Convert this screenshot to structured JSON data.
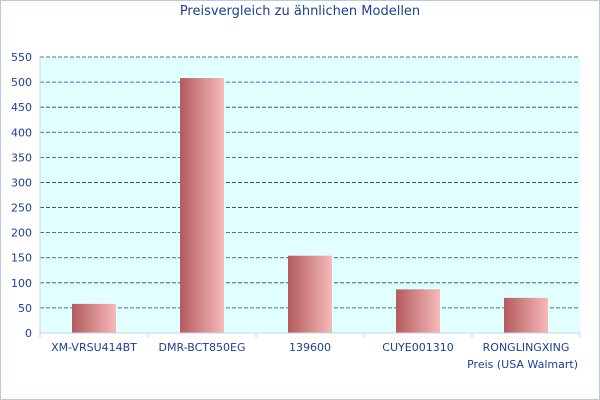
{
  "chart_data": {
    "type": "bar",
    "title": "Preisvergleich zu ähnlichen Modellen",
    "categories": [
      "XM-VRSU414BT",
      "DMR-BCT850EG",
      "139600",
      "CUYE001310",
      "RONGLINGXING"
    ],
    "series": [
      {
        "name": "Preis (USA Walmart)",
        "values": [
          58,
          508,
          154,
          87,
          70
        ]
      }
    ],
    "xlabel": "Preis (USA Walmart)",
    "ylabel": "",
    "ylim": [
      0,
      550
    ],
    "yticks": [
      0,
      50,
      100,
      150,
      200,
      250,
      300,
      350,
      400,
      450,
      500,
      550
    ],
    "grid": true,
    "colors": {
      "plot_background": "#e2ffff",
      "grid": "#1b3f94",
      "bar_dark": "#b35b5e",
      "bar_light": "#f7b9b9",
      "text": "#1b3f94"
    }
  }
}
